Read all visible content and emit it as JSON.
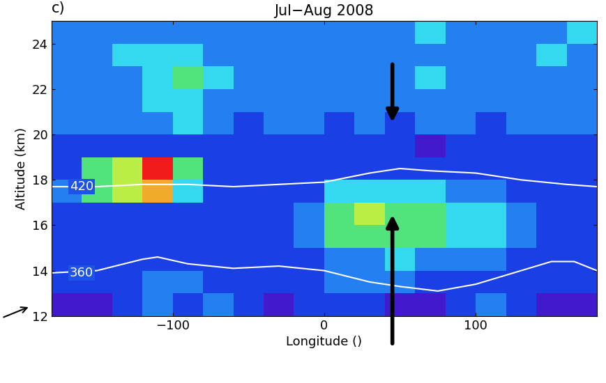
{
  "chart_data": {
    "type": "heatmap",
    "title": "Jul−Aug 2008",
    "panel_label": "c)",
    "x_label": "Longitude ()",
    "y_label": "Altitude (km)",
    "xlim": [
      -180,
      180
    ],
    "xticks": [
      {
        "value": -100,
        "label": "−100"
      },
      0,
      100
    ],
    "ylim": [
      12,
      25
    ],
    "yticks": [
      12,
      14,
      16,
      18,
      20,
      22,
      24
    ],
    "x_edges": [
      -180,
      -160,
      -140,
      -120,
      -100,
      -80,
      -60,
      -40,
      -20,
      0,
      20,
      40,
      60,
      80,
      100,
      120,
      140,
      160,
      180
    ],
    "y_edges": [
      12,
      13,
      14,
      15,
      16,
      17,
      18,
      19,
      20,
      21,
      22,
      23,
      24,
      25
    ],
    "color_range": [
      0,
      10
    ],
    "cells": [
      [
        2,
        2,
        3,
        4,
        3,
        4,
        3,
        2,
        3,
        3,
        3,
        2,
        2,
        3,
        4,
        3,
        2,
        2
      ],
      [
        3,
        3,
        3,
        4,
        4,
        3,
        3,
        3,
        3,
        4,
        4,
        4,
        3,
        3,
        3,
        3,
        3,
        3
      ],
      [
        3,
        3,
        3,
        3,
        3,
        3,
        3,
        3,
        3,
        4,
        4,
        5,
        4,
        4,
        4,
        3,
        3,
        3
      ],
      [
        3,
        3,
        3,
        3,
        3,
        3,
        3,
        3,
        4,
        6,
        6,
        6,
        6,
        5,
        5,
        4,
        3,
        3
      ],
      [
        3,
        3,
        3,
        3,
        3,
        3,
        3,
        3,
        4,
        6,
        7,
        6,
        6,
        5,
        5,
        4,
        3,
        3
      ],
      [
        4,
        6,
        7,
        8,
        5,
        3,
        3,
        3,
        3,
        5,
        5,
        5,
        5,
        4,
        4,
        3,
        3,
        3
      ],
      [
        3,
        6,
        7,
        9,
        6,
        3,
        3,
        3,
        3,
        3,
        3,
        3,
        3,
        3,
        3,
        3,
        3,
        3
      ],
      [
        3,
        3,
        3,
        3,
        3,
        3,
        3,
        3,
        3,
        3,
        3,
        3,
        2,
        3,
        3,
        3,
        3,
        3
      ],
      [
        4,
        4,
        4,
        4,
        5,
        4,
        3,
        4,
        4,
        3,
        4,
        3,
        4,
        4,
        3,
        4,
        4,
        4
      ],
      [
        4,
        4,
        4,
        5,
        5,
        4,
        4,
        4,
        4,
        4,
        4,
        4,
        4,
        4,
        4,
        4,
        4,
        4
      ],
      [
        4,
        4,
        4,
        5,
        6,
        5,
        4,
        4,
        4,
        4,
        4,
        4,
        5,
        4,
        4,
        4,
        4,
        4
      ],
      [
        4,
        4,
        5,
        5,
        5,
        4,
        4,
        4,
        4,
        4,
        4,
        4,
        4,
        4,
        4,
        4,
        5,
        4
      ],
      [
        4,
        4,
        4,
        4,
        4,
        4,
        4,
        4,
        4,
        4,
        4,
        4,
        5,
        4,
        4,
        4,
        4,
        5
      ]
    ],
    "contours": [
      {
        "name": "420",
        "color": "#ffffff",
        "x": [
          -180,
          -150,
          -120,
          -90,
          -60,
          -30,
          0,
          30,
          50,
          70,
          100,
          130,
          160,
          180
        ],
        "values": [
          17.7,
          17.7,
          17.8,
          17.8,
          17.7,
          17.8,
          17.9,
          18.3,
          18.5,
          18.4,
          18.3,
          18.0,
          17.8,
          17.7
        ]
      },
      {
        "name": "360",
        "color": "#ffffff",
        "x": [
          -180,
          -150,
          -120,
          -110,
          -90,
          -60,
          -30,
          0,
          30,
          50,
          75,
          100,
          130,
          150,
          165,
          180
        ],
        "values": [
          13.9,
          14.0,
          14.5,
          14.6,
          14.3,
          14.1,
          14.2,
          14.0,
          13.5,
          13.3,
          13.1,
          13.4,
          14.0,
          14.4,
          14.4,
          14.0
        ]
      }
    ]
  }
}
